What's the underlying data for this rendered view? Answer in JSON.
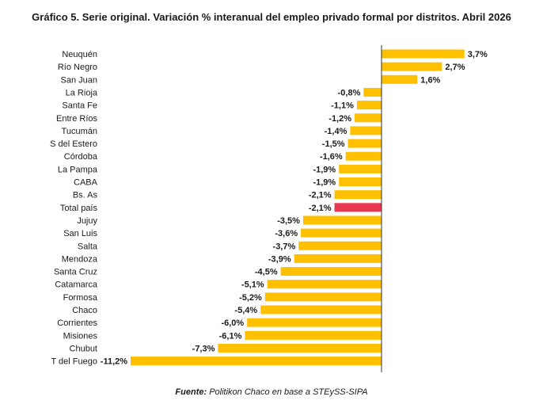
{
  "chart_data": {
    "type": "bar",
    "orientation": "horizontal",
    "title": "Gráfico 5. Serie original. Variación % interanual del empleo privado formal por distritos. Abril 2026",
    "categories": [
      "Neuquén",
      "Río Negro",
      "San Juan",
      "La Rioja",
      "Santa Fe",
      "Entre Ríos",
      "Tucumán",
      "S del Estero",
      "Córdoba",
      "La Pampa",
      "CABA",
      "Bs. As",
      "Total país",
      "Jujuy",
      "San Luis",
      "Salta",
      "Mendoza",
      "Santa Cruz",
      "Catamarca",
      "Formosa",
      "Chaco",
      "Corrientes",
      "Misiones",
      "Chubut",
      "T del Fuego"
    ],
    "values": [
      3.7,
      2.7,
      1.6,
      -0.8,
      -1.1,
      -1.2,
      -1.4,
      -1.5,
      -1.6,
      -1.9,
      -1.9,
      -2.1,
      -2.1,
      -3.5,
      -3.6,
      -3.7,
      -3.9,
      -4.5,
      -5.1,
      -5.2,
      -5.4,
      -6.0,
      -6.1,
      -7.3,
      -11.2
    ],
    "data_labels": [
      "3,7%",
      "2,7%",
      "1,6%",
      "-0,8%",
      "-1,1%",
      "-1,2%",
      "-1,4%",
      "-1,5%",
      "-1,6%",
      "-1,9%",
      "-1,9%",
      "-2,1%",
      "-2,1%",
      "-3,5%",
      "-3,6%",
      "-3,7%",
      "-3,9%",
      "-4,5%",
      "-5,1%",
      "-5,2%",
      "-5,4%",
      "-6,0%",
      "-6,1%",
      "-7,3%",
      "-11,2%"
    ],
    "highlight_category": "Total país",
    "colors": {
      "bar": "#FFC000",
      "highlight": "#E8384F",
      "axis": "#333333"
    },
    "grid": false,
    "legend": false
  },
  "source": {
    "label": "Fuente:",
    "text": " Politikon Chaco en base a STEySS-SIPA"
  }
}
